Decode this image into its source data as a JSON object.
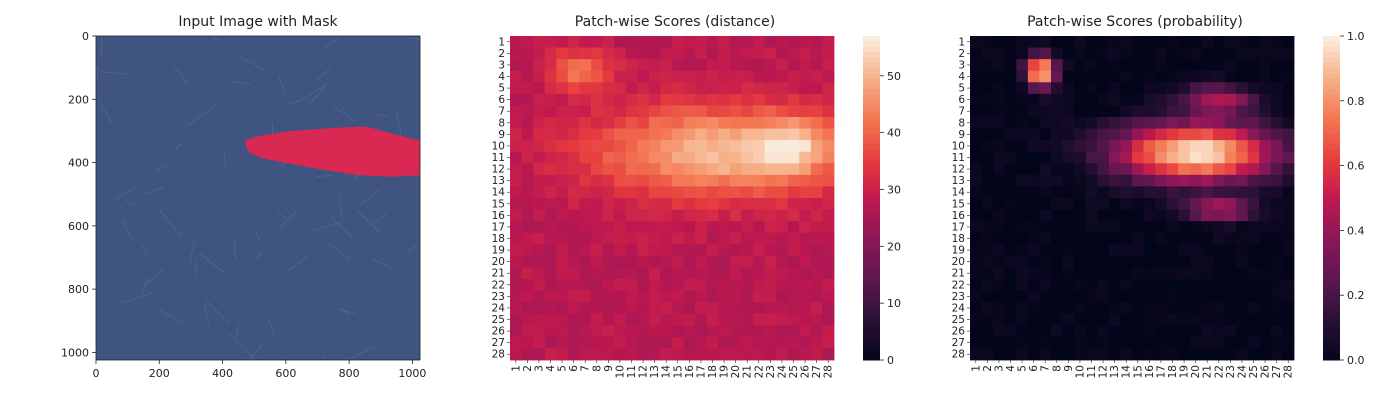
{
  "chart_data": [
    {
      "type": "image",
      "title": "Input Image with Mask",
      "xticks": [
        "0",
        "200",
        "400",
        "600",
        "800",
        "1000"
      ],
      "yticks": [
        "0",
        "200",
        "400",
        "600",
        "800",
        "1000"
      ],
      "xlim": [
        0,
        1024
      ],
      "ylim": [
        1024,
        0
      ],
      "background_color": "#3f5480",
      "mask_color": "#e2274f",
      "mask_polygon": [
        [
          470,
          330
        ],
        [
          520,
          315
        ],
        [
          620,
          300
        ],
        [
          760,
          290
        ],
        [
          850,
          286
        ],
        [
          890,
          296
        ],
        [
          960,
          315
        ],
        [
          1024,
          330
        ],
        [
          1024,
          440
        ],
        [
          940,
          445
        ],
        [
          830,
          440
        ],
        [
          720,
          423
        ],
        [
          620,
          405
        ],
        [
          520,
          385
        ],
        [
          480,
          365
        ]
      ]
    },
    {
      "type": "heatmap",
      "title": "Patch-wise Scores (distance)",
      "row_labels": [
        "1",
        "2",
        "3",
        "4",
        "5",
        "6",
        "7",
        "8",
        "9",
        "10",
        "11",
        "12",
        "13",
        "14",
        "15",
        "16",
        "17",
        "18",
        "19",
        "20",
        "21",
        "22",
        "23",
        "24",
        "25",
        "26",
        "27",
        "28"
      ],
      "col_labels": [
        "1",
        "2",
        "3",
        "4",
        "5",
        "6",
        "7",
        "8",
        "9",
        "10",
        "11",
        "12",
        "13",
        "14",
        "15",
        "16",
        "17",
        "18",
        "19",
        "20",
        "21",
        "22",
        "23",
        "24",
        "25",
        "26",
        "27",
        "28"
      ],
      "colorbar_ticks": [
        "0",
        "10",
        "20",
        "30",
        "40",
        "50"
      ],
      "vmin": 0,
      "vmax": 57,
      "colormap": "rocket",
      "hot_regions": [
        {
          "row": 3.5,
          "col": 6.5,
          "rs": 1.4,
          "cs": 2.2,
          "amp": 14
        },
        {
          "row": 10.5,
          "col": 19,
          "rs": 3.0,
          "cs": 8.5,
          "amp": 24
        },
        {
          "row": 10,
          "col": 25,
          "rs": 1.7,
          "cs": 2.0,
          "amp": 13
        }
      ],
      "baseline_value": 28
    },
    {
      "type": "heatmap",
      "title": "Patch-wise Scores (probability)",
      "row_labels": [
        "1",
        "2",
        "3",
        "4",
        "5",
        "6",
        "7",
        "8",
        "9",
        "10",
        "11",
        "12",
        "13",
        "14",
        "15",
        "16",
        "17",
        "18",
        "19",
        "20",
        "21",
        "22",
        "23",
        "24",
        "25",
        "26",
        "27",
        "28"
      ],
      "col_labels": [
        "1",
        "2",
        "3",
        "4",
        "5",
        "6",
        "7",
        "8",
        "9",
        "10",
        "11",
        "12",
        "13",
        "14",
        "15",
        "16",
        "17",
        "18",
        "19",
        "20",
        "21",
        "22",
        "23",
        "24",
        "25",
        "26",
        "27",
        "28"
      ],
      "colorbar_ticks": [
        "0.0",
        "0.2",
        "0.4",
        "0.6",
        "0.8",
        "1.0"
      ],
      "vmin": 0,
      "vmax": 1,
      "colormap": "rocket",
      "hot_regions": [
        {
          "row": 3.6,
          "col": 6.6,
          "rs": 1.3,
          "cs": 1.2,
          "amp": 1.0
        },
        {
          "row": 10.6,
          "col": 20,
          "rs": 2.4,
          "cs": 6.5,
          "amp": 1.0
        },
        {
          "row": 6,
          "col": 22,
          "rs": 1.2,
          "cs": 3.0,
          "amp": 0.45
        },
        {
          "row": 15.5,
          "col": 22,
          "rs": 1.0,
          "cs": 3.0,
          "amp": 0.45
        }
      ],
      "baseline_value": 0
    }
  ]
}
